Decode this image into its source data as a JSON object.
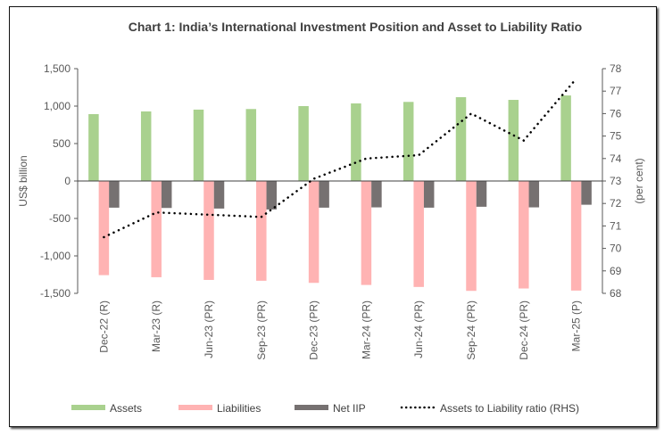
{
  "chart_data": {
    "type": "bar+line",
    "title": "Chart 1: India’s International Investment Position and Asset to Liability Ratio",
    "ylabel": "US$ billion",
    "ylabel_right": "(per cent)",
    "ylim": [
      -1500,
      1500
    ],
    "ylim_right": [
      68,
      78
    ],
    "yticks": [
      "1,500",
      "1,000",
      "500",
      "0",
      "-500",
      "-1,000",
      "-1,500"
    ],
    "yticks_right": [
      "78",
      "77",
      "76",
      "75",
      "74",
      "73",
      "72",
      "71",
      "70",
      "69",
      "68"
    ],
    "categories": [
      "Dec-22 (R)",
      "Mar-23 (R)",
      "Jun-23 (PR)",
      "Sep-23 (PR)",
      "Dec-23 (PR)",
      "Mar-24 (PR)",
      "Jun-24 (PR)",
      "Sep-24 (PR)",
      "Dec-24 (PR)",
      "Mar-25 (P)"
    ],
    "series": [
      {
        "name": "Assets",
        "type": "bar",
        "axis": "left",
        "color": "#a9d18e",
        "values": [
          893,
          929,
          953,
          961,
          1000,
          1036,
          1056,
          1119,
          1083,
          1142
        ]
      },
      {
        "name": "Liabilities",
        "type": "bar",
        "axis": "left",
        "color": "#ffb3b3",
        "values": [
          -1257,
          -1285,
          -1321,
          -1332,
          -1360,
          -1388,
          -1415,
          -1467,
          -1435,
          -1463
        ]
      },
      {
        "name": "Net IIP",
        "type": "bar",
        "axis": "left",
        "color": "#767171",
        "values": [
          -356,
          -360,
          -368,
          -380,
          -356,
          -352,
          -356,
          -344,
          -352,
          -317
        ]
      },
      {
        "name": "Assets to Liability ratio (RHS)",
        "type": "line",
        "style": "dotted",
        "axis": "right",
        "color": "#000000",
        "values": [
          70.5,
          71.6,
          71.5,
          71.4,
          73.1,
          74.0,
          74.15,
          76.0,
          74.8,
          77.55
        ]
      }
    ],
    "legend": "bottom",
    "grid": false
  }
}
